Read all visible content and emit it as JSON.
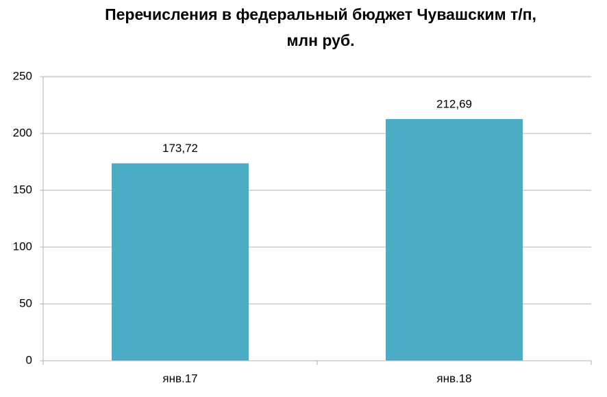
{
  "chart_data": {
    "type": "bar",
    "title": [
      "Перечисления в федеральный бюджет Чувашским т/п,",
      "млн руб."
    ],
    "categories": [
      "янв.17",
      "янв.18"
    ],
    "values": [
      173.72,
      212.69
    ],
    "value_labels": [
      "173,72",
      "212,69"
    ],
    "color": "#4bacc6",
    "ylim": [
      0,
      250
    ],
    "yticks": [
      0,
      50,
      100,
      150,
      200,
      250
    ],
    "grid": true
  }
}
